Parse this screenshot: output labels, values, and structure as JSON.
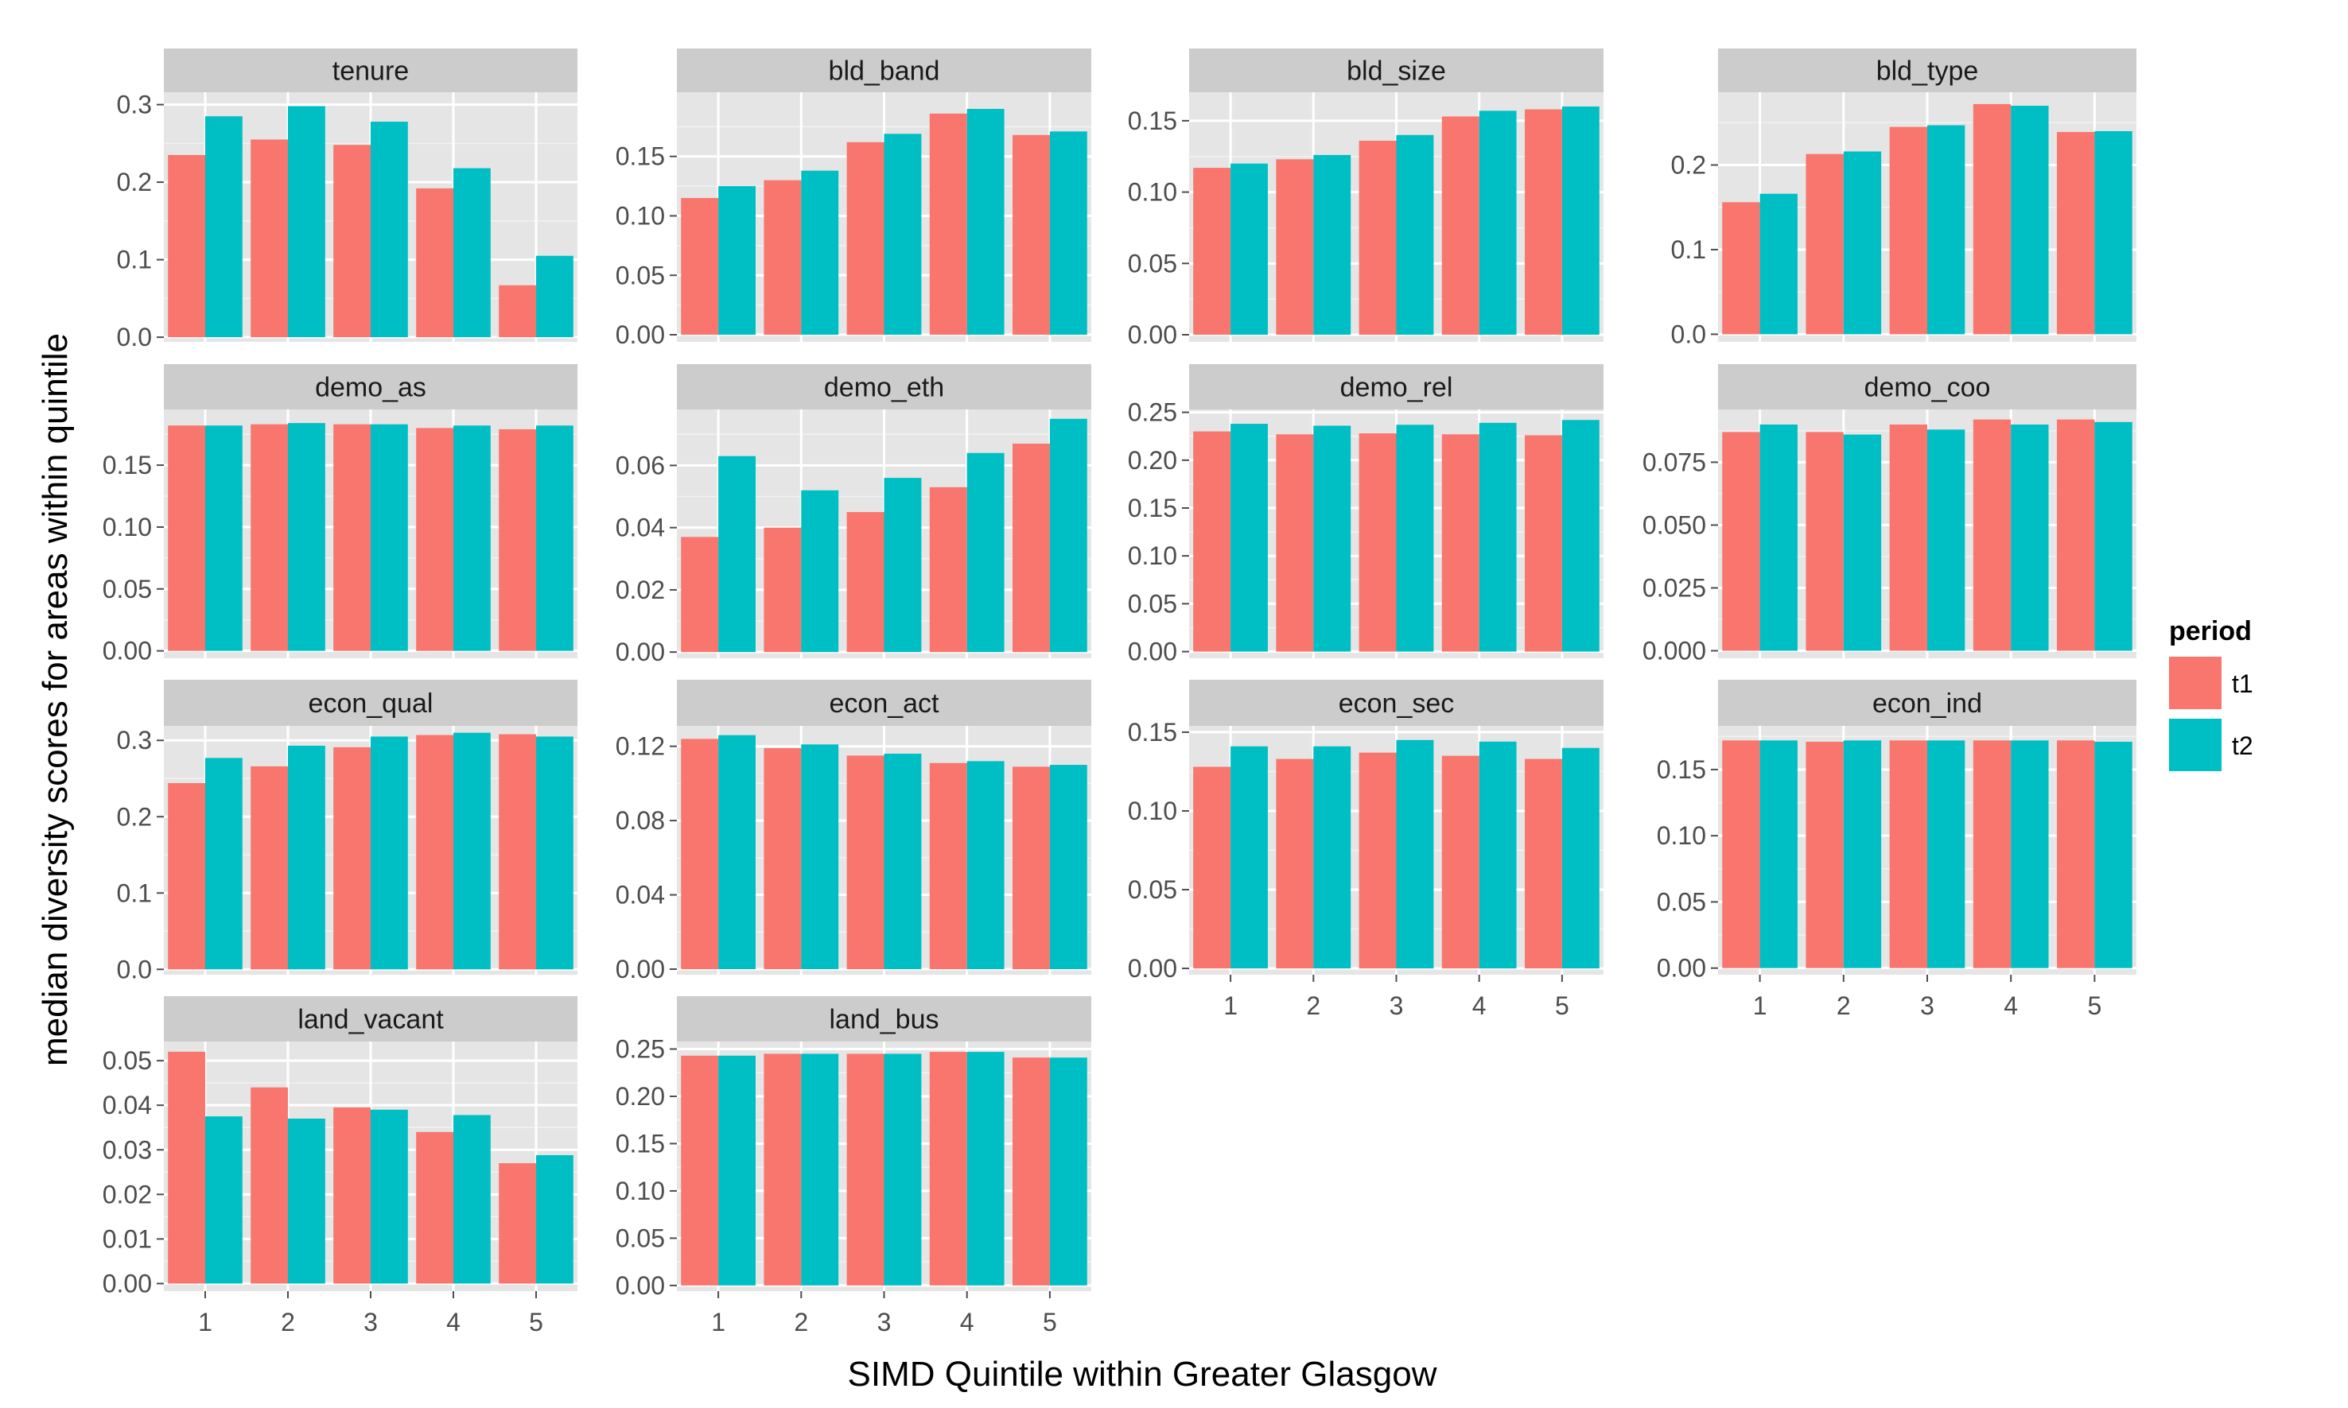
{
  "chart_data": {
    "type": "bar",
    "facet_layout": "wrap",
    "facet_columns": 4,
    "free_y_scales": true,
    "xlabel": "SIMD Quintile within Greater Glasgow",
    "ylabel": "median diversity scores for areas within quintile",
    "categories": [
      "1",
      "2",
      "3",
      "4",
      "5"
    ],
    "legend": {
      "title": "period",
      "position": "right",
      "items": [
        {
          "name": "t1",
          "color": "#F8766D"
        },
        {
          "name": "t2",
          "color": "#00BFC4"
        }
      ]
    },
    "background": "#E5E5E5",
    "strip_background": "#CCCCCC",
    "grid": true,
    "panels": [
      {
        "title": "tenure",
        "ylim": [
          -0.006,
          0.316
        ],
        "yticks": [
          0.0,
          0.1,
          0.2,
          0.3
        ],
        "tick_labels": [
          "0.0",
          "0.1",
          "0.2",
          "0.3"
        ],
        "series": [
          {
            "name": "t1",
            "values": [
              0.235,
              0.255,
              0.248,
              0.192,
              0.067
            ]
          },
          {
            "name": "t2",
            "values": [
              0.285,
              0.298,
              0.278,
              0.218,
              0.105
            ]
          }
        ]
      },
      {
        "title": "bld_band",
        "ylim": [
          -0.006,
          0.204
        ],
        "yticks": [
          0.0,
          0.05,
          0.1,
          0.15
        ],
        "tick_labels": [
          "0.00",
          "0.05",
          "0.10",
          "0.15"
        ],
        "series": [
          {
            "name": "t1",
            "values": [
              0.115,
              0.13,
              0.162,
              0.186,
              0.168
            ]
          },
          {
            "name": "t2",
            "values": [
              0.125,
              0.138,
              0.169,
              0.19,
              0.171
            ]
          }
        ]
      },
      {
        "title": "bld_size",
        "ylim": [
          -0.005,
          0.17
        ],
        "yticks": [
          0.0,
          0.05,
          0.1,
          0.15
        ],
        "tick_labels": [
          "0.00",
          "0.05",
          "0.10",
          "0.15"
        ],
        "series": [
          {
            "name": "t1",
            "values": [
              0.117,
              0.123,
              0.136,
              0.153,
              0.158
            ]
          },
          {
            "name": "t2",
            "values": [
              0.12,
              0.126,
              0.14,
              0.157,
              0.16
            ]
          }
        ]
      },
      {
        "title": "bld_type",
        "ylim": [
          -0.009,
          0.286
        ],
        "yticks": [
          0.0,
          0.1,
          0.2
        ],
        "tick_labels": [
          "0.0",
          "0.1",
          "0.2"
        ],
        "series": [
          {
            "name": "t1",
            "values": [
              0.156,
              0.213,
              0.245,
              0.272,
              0.239
            ]
          },
          {
            "name": "t2",
            "values": [
              0.166,
              0.216,
              0.247,
              0.27,
              0.24
            ]
          }
        ]
      },
      {
        "title": "demo_as",
        "ylim": [
          -0.006,
          0.195
        ],
        "yticks": [
          0.0,
          0.05,
          0.1,
          0.15
        ],
        "tick_labels": [
          "0.00",
          "0.05",
          "0.10",
          "0.15"
        ],
        "series": [
          {
            "name": "t1",
            "values": [
              0.182,
              0.183,
              0.183,
              0.18,
              0.179
            ]
          },
          {
            "name": "t2",
            "values": [
              0.182,
              0.184,
              0.183,
              0.182,
              0.182
            ]
          }
        ]
      },
      {
        "title": "demo_eth",
        "ylim": [
          -0.002,
          0.078
        ],
        "yticks": [
          0.0,
          0.02,
          0.04,
          0.06
        ],
        "tick_labels": [
          "0.00",
          "0.02",
          "0.04",
          "0.06"
        ],
        "series": [
          {
            "name": "t1",
            "values": [
              0.037,
              0.04,
              0.045,
              0.053,
              0.067
            ]
          },
          {
            "name": "t2",
            "values": [
              0.063,
              0.052,
              0.056,
              0.064,
              0.075
            ]
          }
        ]
      },
      {
        "title": "demo_rel",
        "ylim": [
          -0.007,
          0.253
        ],
        "yticks": [
          0.0,
          0.05,
          0.1,
          0.15,
          0.2,
          0.25
        ],
        "tick_labels": [
          "0.00",
          "0.05",
          "0.10",
          "0.15",
          "0.20",
          "0.25"
        ],
        "series": [
          {
            "name": "t1",
            "values": [
              0.23,
              0.227,
              0.228,
              0.227,
              0.226
            ]
          },
          {
            "name": "t2",
            "values": [
              0.238,
              0.236,
              0.237,
              0.239,
              0.242
            ]
          }
        ]
      },
      {
        "title": "demo_coo",
        "ylim": [
          -0.003,
          0.096
        ],
        "yticks": [
          0.0,
          0.025,
          0.05,
          0.075
        ],
        "tick_labels": [
          "0.000",
          "0.025",
          "0.050",
          "0.075"
        ],
        "series": [
          {
            "name": "t1",
            "values": [
              0.087,
              0.087,
              0.09,
              0.092,
              0.092
            ]
          },
          {
            "name": "t2",
            "values": [
              0.09,
              0.086,
              0.088,
              0.09,
              0.091
            ]
          }
        ]
      },
      {
        "title": "econ_qual",
        "ylim": [
          -0.007,
          0.319
        ],
        "yticks": [
          0.0,
          0.1,
          0.2,
          0.3
        ],
        "tick_labels": [
          "0.0",
          "0.1",
          "0.2",
          "0.3"
        ],
        "series": [
          {
            "name": "t1",
            "values": [
              0.244,
              0.266,
              0.291,
              0.307,
              0.308
            ]
          },
          {
            "name": "t2",
            "values": [
              0.277,
              0.293,
              0.305,
              0.31,
              0.305
            ]
          }
        ]
      },
      {
        "title": "econ_act",
        "ylim": [
          -0.003,
          0.131
        ],
        "yticks": [
          0.0,
          0.04,
          0.08,
          0.12
        ],
        "tick_labels": [
          "0.00",
          "0.04",
          "0.08",
          "0.12"
        ],
        "series": [
          {
            "name": "t1",
            "values": [
              0.124,
              0.119,
              0.115,
              0.111,
              0.109
            ]
          },
          {
            "name": "t2",
            "values": [
              0.126,
              0.121,
              0.116,
              0.112,
              0.11
            ]
          }
        ]
      },
      {
        "title": "econ_sec",
        "ylim": [
          -0.004,
          0.154
        ],
        "yticks": [
          0.0,
          0.05,
          0.1,
          0.15
        ],
        "tick_labels": [
          "0.00",
          "0.05",
          "0.10",
          "0.15"
        ],
        "series": [
          {
            "name": "t1",
            "values": [
              0.128,
              0.133,
              0.137,
              0.135,
              0.133
            ]
          },
          {
            "name": "t2",
            "values": [
              0.141,
              0.141,
              0.145,
              0.144,
              0.14
            ]
          }
        ]
      },
      {
        "title": "econ_ind",
        "ylim": [
          -0.005,
          0.183
        ],
        "yticks": [
          0.0,
          0.05,
          0.1,
          0.15
        ],
        "tick_labels": [
          "0.00",
          "0.05",
          "0.10",
          "0.15"
        ],
        "series": [
          {
            "name": "t1",
            "values": [
              0.172,
              0.171,
              0.172,
              0.172,
              0.172
            ]
          },
          {
            "name": "t2",
            "values": [
              0.172,
              0.172,
              0.172,
              0.172,
              0.171
            ]
          }
        ]
      },
      {
        "title": "land_vacant",
        "ylim": [
          -0.0017,
          0.0543
        ],
        "yticks": [
          0.0,
          0.01,
          0.02,
          0.03,
          0.04,
          0.05
        ],
        "tick_labels": [
          "0.00",
          "0.01",
          "0.02",
          "0.03",
          "0.04",
          "0.05"
        ],
        "series": [
          {
            "name": "t1",
            "values": [
              0.052,
              0.044,
              0.0395,
              0.034,
              0.027
            ]
          },
          {
            "name": "t2",
            "values": [
              0.0375,
              0.037,
              0.039,
              0.0378,
              0.0288
            ]
          }
        ]
      },
      {
        "title": "land_bus",
        "ylim": [
          -0.006,
          0.258
        ],
        "yticks": [
          0.0,
          0.05,
          0.1,
          0.15,
          0.2,
          0.25
        ],
        "tick_labels": [
          "0.00",
          "0.05",
          "0.10",
          "0.15",
          "0.20",
          "0.25"
        ],
        "series": [
          {
            "name": "t1",
            "values": [
              0.243,
              0.245,
              0.245,
              0.247,
              0.241
            ]
          },
          {
            "name": "t2",
            "values": [
              0.243,
              0.245,
              0.245,
              0.247,
              0.241
            ]
          }
        ]
      }
    ]
  }
}
